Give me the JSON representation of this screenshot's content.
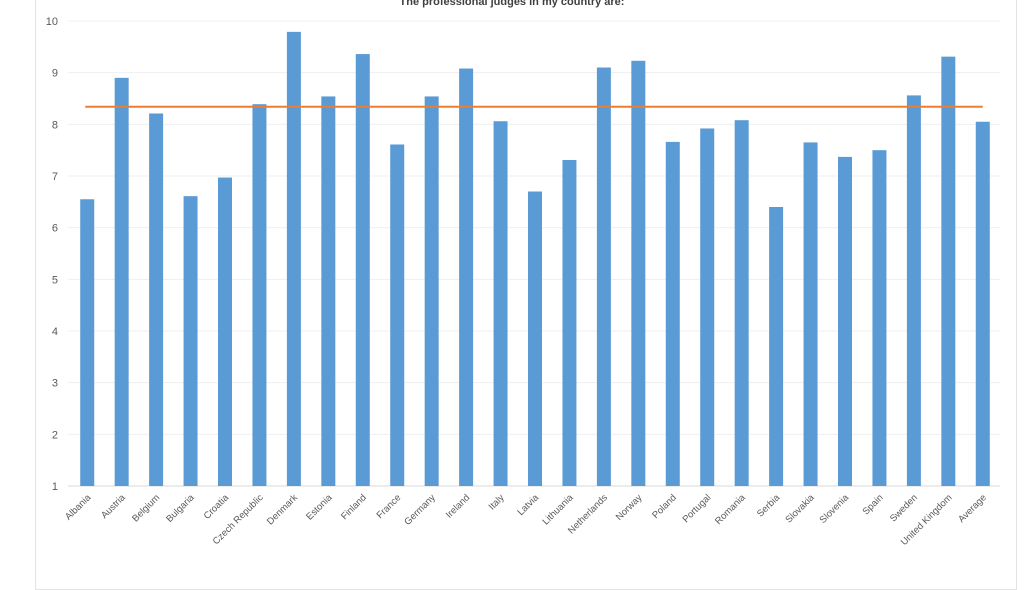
{
  "chart_data": {
    "type": "bar",
    "title": "The professional judges in my country are:",
    "xlabel": "",
    "ylabel": "",
    "ylim": [
      1,
      10
    ],
    "yticks": [
      1,
      2,
      3,
      4,
      5,
      6,
      7,
      8,
      9,
      10
    ],
    "grid": true,
    "categories": [
      "Albania",
      "Austria",
      "Belgium",
      "Bulgaria",
      "Croatia",
      "Czech Republic",
      "Denmark",
      "Estonia",
      "Finland",
      "France",
      "Germany",
      "Ireland",
      "Italy",
      "Latvia",
      "Lithuania",
      "Netherlands",
      "Norway",
      "Poland",
      "Portugal",
      "Romania",
      "Serbia",
      "Slovakia",
      "Slovenia",
      "Spain",
      "Sweden",
      "United Kingdom",
      "Average"
    ],
    "series": [
      {
        "type": "bar",
        "color": "#5b9bd5",
        "values": [
          6.55,
          8.9,
          8.21,
          6.61,
          6.97,
          8.39,
          9.79,
          8.54,
          9.36,
          7.61,
          8.54,
          9.08,
          8.06,
          6.7,
          7.31,
          9.1,
          9.23,
          7.66,
          7.92,
          8.08,
          6.4,
          7.65,
          7.37,
          7.5,
          8.56,
          9.31,
          8.05
        ]
      },
      {
        "type": "line",
        "color": "#ed7d31",
        "value": 8.34
      }
    ]
  }
}
